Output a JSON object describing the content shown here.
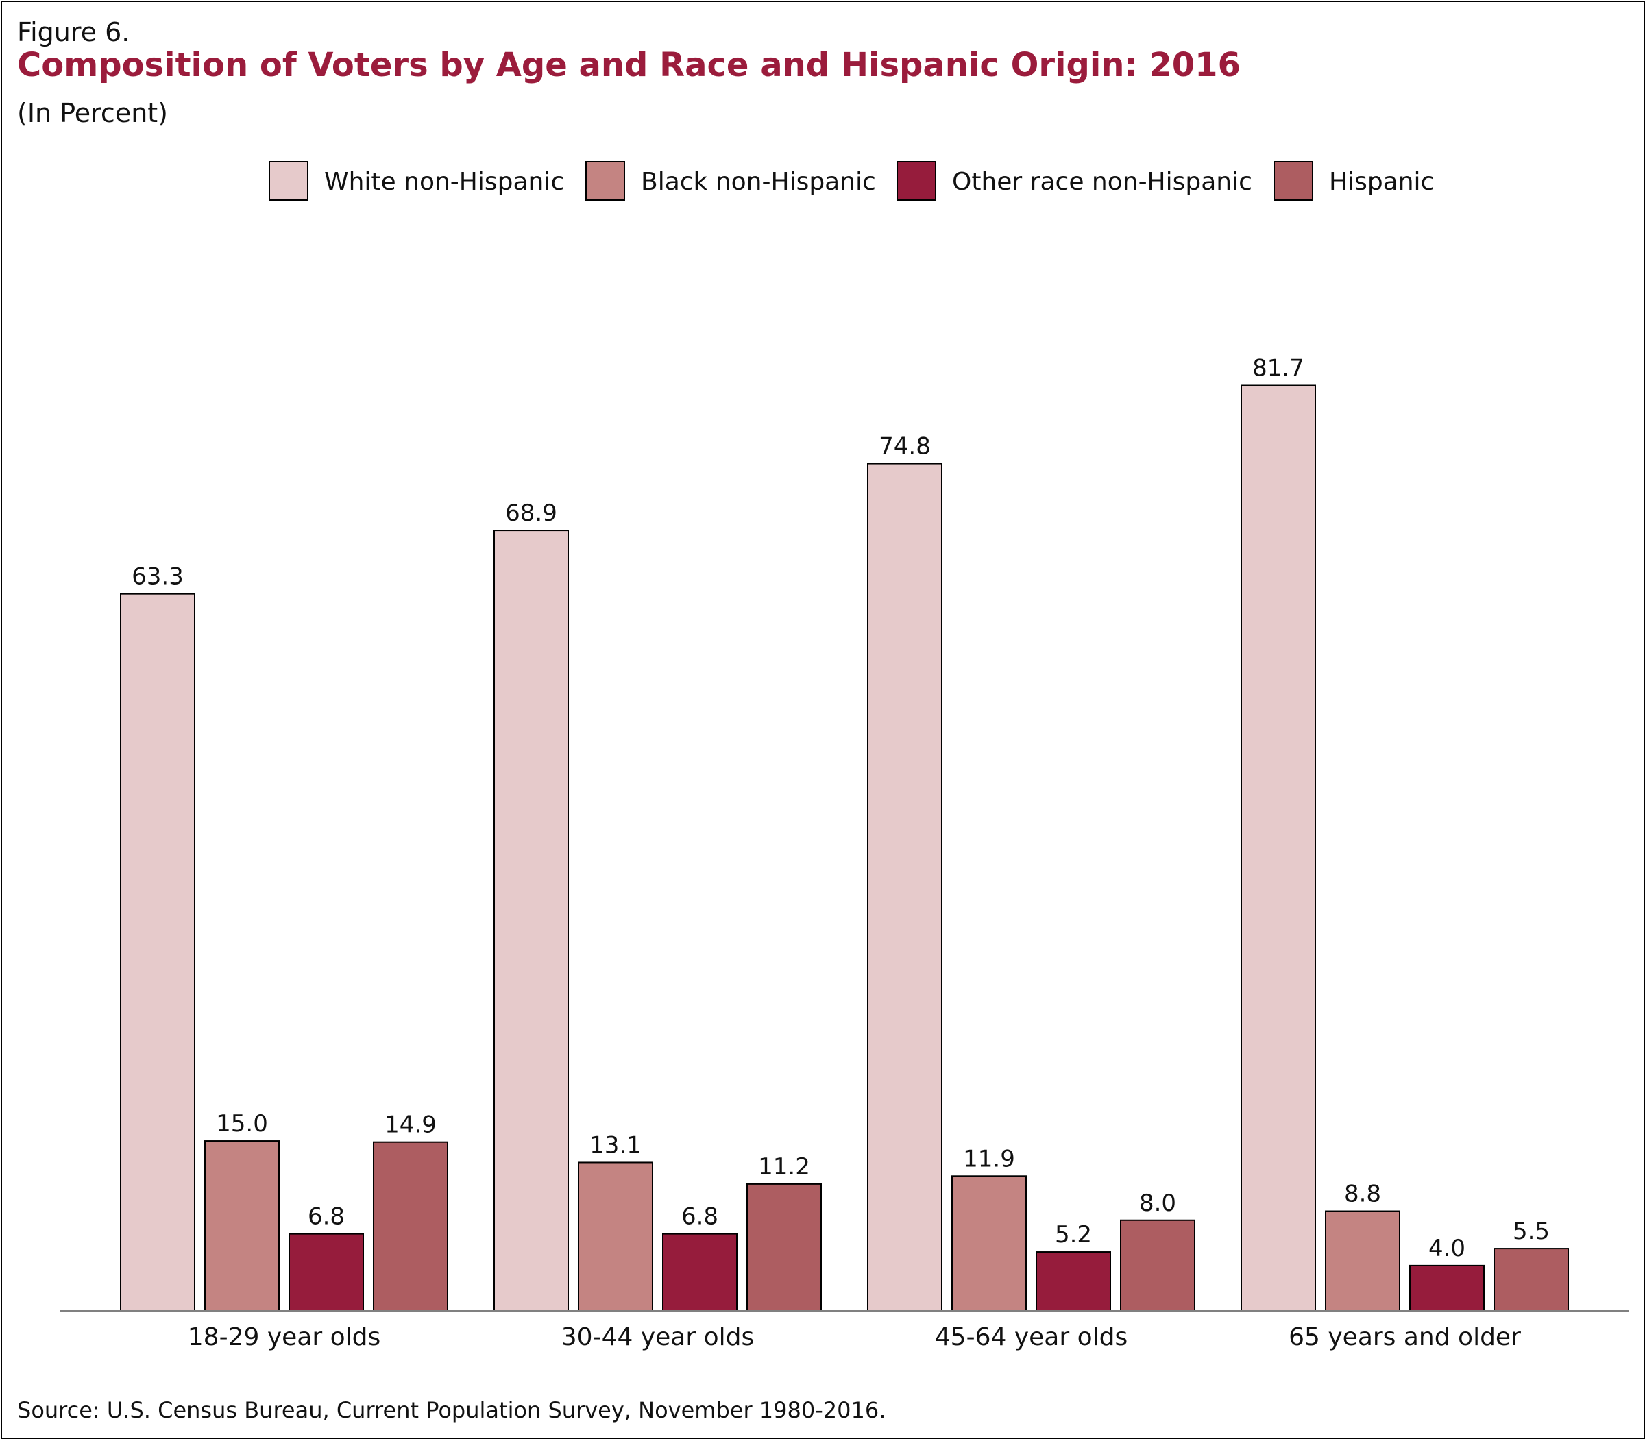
{
  "figure_label": "Figure 6.",
  "title": "Composition of Voters by Age and Race and Hispanic Origin: 2016",
  "subtitle": "(In Percent)",
  "source": "Source: U.S. Census Bureau, Current Population Survey, November 1980-2016.",
  "chart_data": {
    "type": "bar",
    "categories": [
      "18-29 year olds",
      "30-44 year olds",
      "45-64 year olds",
      "65 years and older"
    ],
    "series": [
      {
        "name": "White non-Hispanic",
        "color": "#e6cacb",
        "values": [
          63.3,
          68.9,
          74.8,
          81.7
        ]
      },
      {
        "name": "Black non-Hispanic",
        "color": "#c48482",
        "values": [
          15.0,
          13.1,
          11.9,
          8.8
        ]
      },
      {
        "name": "Other race non-Hispanic",
        "color": "#961c3c",
        "values": [
          6.8,
          6.8,
          5.2,
          4.0
        ]
      },
      {
        "name": "Hispanic",
        "color": "#ad5d61",
        "values": [
          14.9,
          11.2,
          8.0,
          5.5
        ]
      }
    ],
    "value_labels": [
      [
        "63.3",
        "68.9",
        "74.8",
        "81.7"
      ],
      [
        "15.0",
        "13.1",
        "11.9",
        "8.8"
      ],
      [
        "6.8",
        "6.8",
        "5.2",
        "4.0"
      ],
      [
        "14.9",
        "11.2",
        "8.0",
        "5.5"
      ]
    ],
    "ylim": [
      0,
      100
    ],
    "grid": false,
    "legend_position": "top-center"
  }
}
